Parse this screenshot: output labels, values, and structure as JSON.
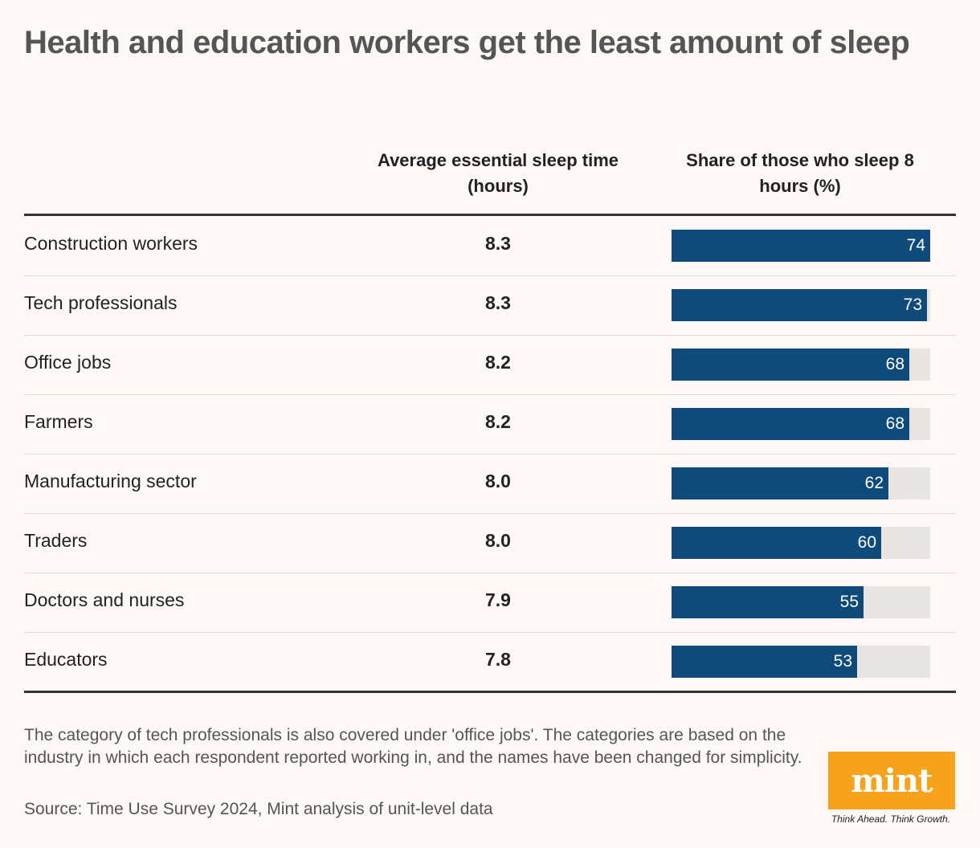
{
  "title": "Health and education workers get the least amount of sleep",
  "columns": {
    "avg": "Average essential sleep time (hours)",
    "share": "Share of those who sleep 8 hours (%)"
  },
  "note": "The category of tech professionals is also covered under 'office jobs'. The categories are based on the industry in which each respondent reported working in, and the names have been changed for simplicity.",
  "source": "Source: Time Use Survey 2024, Mint analysis of unit-level data",
  "logo": {
    "text": "mint",
    "tagline": "Think Ahead. Think Growth."
  },
  "colors": {
    "bar": "#0e4b7a",
    "track": "#e8e4e2",
    "logo": "#f7a21b",
    "background": "#fdf8f6"
  },
  "chart_data": {
    "type": "table",
    "share_max": 74,
    "rows": [
      {
        "category": "Construction workers",
        "avg_sleep": "8.3",
        "share": 74
      },
      {
        "category": "Tech professionals",
        "avg_sleep": "8.3",
        "share": 73
      },
      {
        "category": "Office jobs",
        "avg_sleep": "8.2",
        "share": 68
      },
      {
        "category": "Farmers",
        "avg_sleep": "8.2",
        "share": 68
      },
      {
        "category": "Manufacturing sector",
        "avg_sleep": "8.0",
        "share": 62
      },
      {
        "category": "Traders",
        "avg_sleep": "8.0",
        "share": 60
      },
      {
        "category": "Doctors and nurses",
        "avg_sleep": "7.9",
        "share": 55
      },
      {
        "category": "Educators",
        "avg_sleep": "7.8",
        "share": 53
      }
    ]
  }
}
